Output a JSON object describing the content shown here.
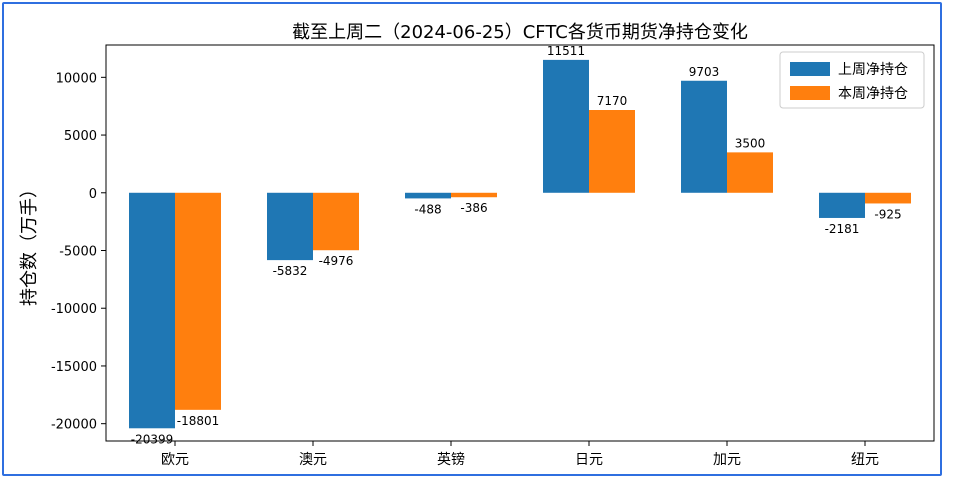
{
  "chart_data": {
    "type": "bar",
    "title": "截至上周二（2024-06-25）CFTC各货币期货净持仓变化",
    "xlabel": "",
    "ylabel": "持仓数（万手）",
    "categories": [
      "欧元",
      "澳元",
      "英镑",
      "日元",
      "加元",
      "纽元"
    ],
    "series": [
      {
        "name": "上周净持仓",
        "color": "#1f77b4",
        "values": [
          -20399,
          -5832,
          -488,
          11511,
          9703,
          -2181
        ]
      },
      {
        "name": "本周净持仓",
        "color": "#ff7f0e",
        "values": [
          -18801,
          -4976,
          -386,
          7170,
          3500,
          -925
        ]
      }
    ],
    "ylim": [
      -21500,
      12800
    ],
    "yticks": [
      10000,
      5000,
      0,
      -5000,
      -10000,
      -15000,
      -20000
    ],
    "grid": false,
    "legend_position": "top-right"
  }
}
